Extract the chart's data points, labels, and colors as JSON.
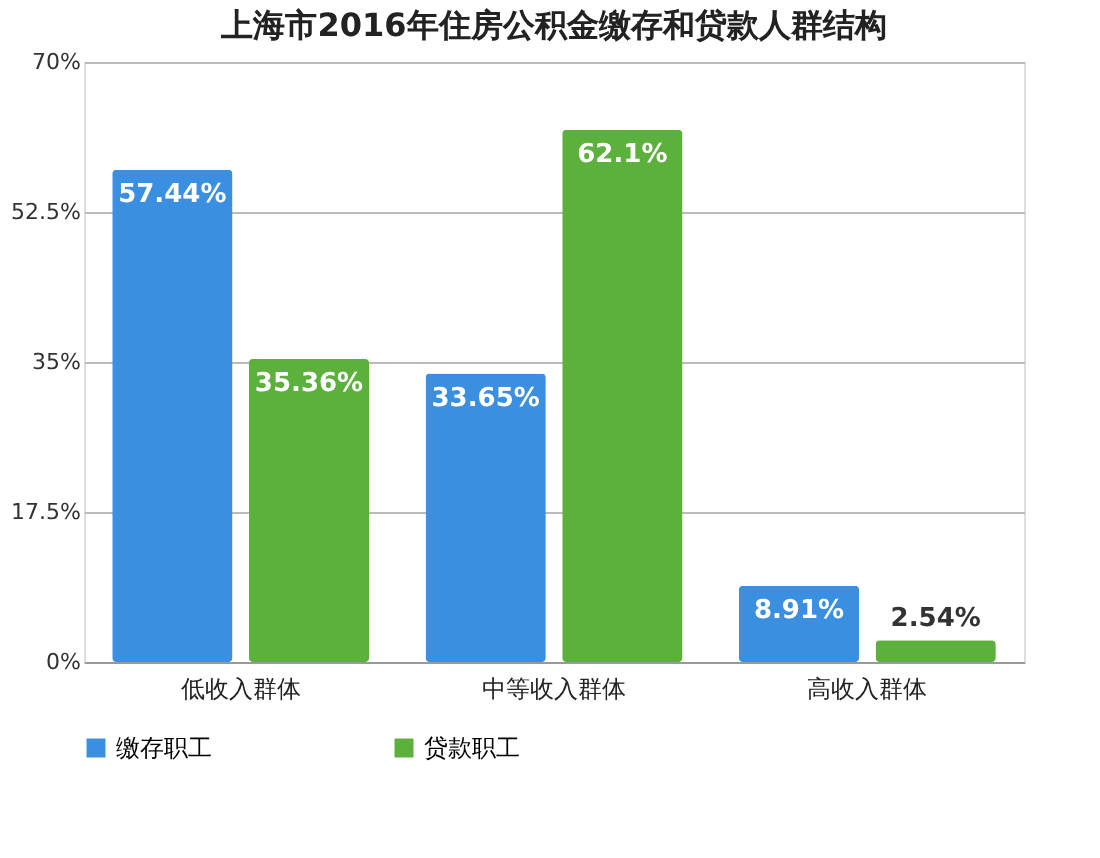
{
  "chart_data": {
    "type": "bar",
    "title": "上海市2016年住房公积金缴存和贷款人群结构",
    "categories": [
      "低收入群体",
      "中等收入群体",
      "高收入群体"
    ],
    "series": [
      {
        "name": "缴存职工",
        "color": "#3b8fe0",
        "values": [
          57.44,
          33.65,
          8.91
        ],
        "value_labels": [
          "57.44%",
          "33.65%",
          "8.91%"
        ]
      },
      {
        "name": "贷款职工",
        "color": "#5cb13c",
        "values": [
          35.36,
          62.1,
          2.54
        ],
        "value_labels": [
          "35.36%",
          "62.1%",
          "2.54%"
        ]
      }
    ],
    "ylim": [
      0,
      70
    ],
    "yticks": [
      {
        "value": 0,
        "label": "0%"
      },
      {
        "value": 17.5,
        "label": "17.5%"
      },
      {
        "value": 35,
        "label": "35%"
      },
      {
        "value": 52.5,
        "label": "52.5%"
      },
      {
        "value": 70,
        "label": "70%"
      }
    ],
    "grid": "y",
    "legend": "bottom"
  }
}
